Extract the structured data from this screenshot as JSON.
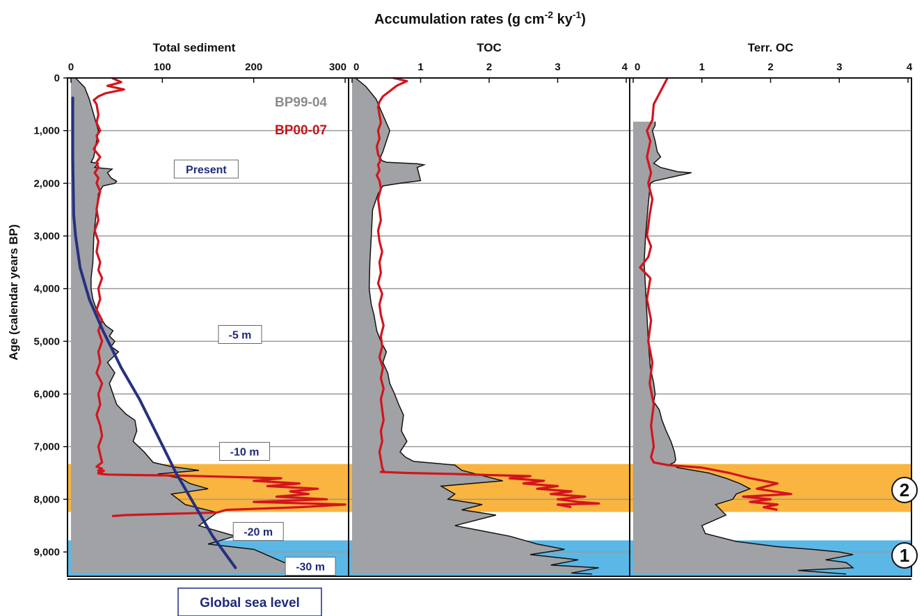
{
  "figure": {
    "title": "Accumulation rates (g cm",
    "title_sup1": "-2",
    "title_mid": " ky",
    "title_sup2": "-1",
    "title_end": ")",
    "ylabel": "Age (calendar years BP)",
    "legend": [
      "BP99-04",
      "BP00-07"
    ],
    "global_sea_level_label": "Global sea level",
    "sea_level_annotations": [
      {
        "text": "Present",
        "age": 1730,
        "x": 148
      },
      {
        "text": "-5 m",
        "age": 4870,
        "x": 185
      },
      {
        "text": "-10 m",
        "age": 7090,
        "x": 190
      },
      {
        "text": "-20 m",
        "age": 8610,
        "x": 205
      },
      {
        "text": "-30 m",
        "age": 9270,
        "x": 262
      }
    ],
    "bands": [
      {
        "label": "2",
        "from": 7330,
        "to": 8240,
        "color": "#f9b53f"
      },
      {
        "label": "1",
        "from": 8780,
        "to": 9450,
        "color": "#5bb7e6"
      }
    ]
  },
  "chart_data": [
    {
      "type": "area",
      "title": "Total sediment",
      "xlim": [
        0,
        300
      ],
      "xticks": [
        0,
        100,
        200,
        300
      ],
      "ylim": [
        0,
        9500
      ],
      "yticks": [
        0,
        1000,
        2000,
        3000,
        4000,
        5000,
        6000,
        7000,
        8000,
        9000
      ],
      "ytick_labels": [
        "0",
        "1,000",
        "2,000",
        "3,000",
        "4,000",
        "5,000",
        "6,000",
        "7,000",
        "8,000",
        "9,000"
      ],
      "series": [
        {
          "name": "BP99-04",
          "style": "gray-fill",
          "x": [
            5,
            15,
            20,
            25,
            30,
            28,
            25,
            22,
            30,
            28,
            26,
            45,
            40,
            44,
            50,
            48,
            35,
            30,
            28,
            25,
            24,
            22,
            22,
            24,
            26,
            28,
            30,
            34,
            38,
            46,
            42,
            48,
            44,
            52,
            40,
            48,
            42,
            46,
            50,
            60,
            70,
            72,
            68,
            80,
            90,
            110,
            140,
            95,
            120,
            130,
            150,
            110,
            125,
            160,
            140,
            180,
            150,
            200,
            220,
            260
          ],
          "y": [
            0,
            180,
            400,
            700,
            1000,
            1200,
            1500,
            1600,
            1620,
            1660,
            1700,
            1730,
            1800,
            1900,
            1960,
            2000,
            2050,
            2200,
            2500,
            3000,
            3500,
            3800,
            4000,
            4200,
            4300,
            4400,
            4500,
            4600,
            4700,
            4800,
            4900,
            5000,
            5100,
            5200,
            5400,
            5600,
            5800,
            6000,
            6200,
            6380,
            6500,
            6700,
            6900,
            7100,
            7300,
            7380,
            7450,
            7520,
            7600,
            7700,
            7800,
            7900,
            8100,
            8250,
            8500,
            8700,
            8850,
            8950,
            9100,
            9400
          ]
        },
        {
          "name": "BP00-07",
          "style": "red-line",
          "x": [
            45,
            55,
            40,
            58,
            38,
            30,
            25,
            28,
            30,
            28,
            32,
            28,
            30,
            25,
            32,
            28,
            30,
            26,
            30,
            28,
            32,
            30,
            28,
            30,
            26,
            30,
            28,
            32,
            30,
            34,
            30,
            32,
            28,
            34,
            30,
            34,
            30,
            32,
            28,
            34,
            30,
            32,
            28,
            32,
            34,
            30,
            32,
            34,
            28,
            34,
            30,
            36,
            32,
            34,
            30,
            34,
            30,
            34,
            40,
            70,
            120,
            230,
            200,
            250,
            215,
            270,
            240,
            260,
            225,
            280,
            200,
            300,
            250,
            170,
            160,
            60,
            45
          ],
          "y": [
            0,
            80,
            150,
            220,
            290,
            350,
            420,
            500,
            700,
            850,
            1000,
            1100,
            1200,
            1350,
            1500,
            1600,
            1700,
            1800,
            1900,
            2000,
            2150,
            2300,
            2500,
            2700,
            2900,
            3100,
            3300,
            3500,
            3650,
            3800,
            4000,
            4200,
            4400,
            4600,
            4800,
            5000,
            5200,
            5400,
            5600,
            5800,
            6000,
            6200,
            6400,
            6600,
            6800,
            7000,
            7150,
            7300,
            7380,
            7420,
            7450,
            7460,
            7470,
            7480,
            7490,
            7500,
            7510,
            7520,
            7530,
            7540,
            7550,
            7600,
            7650,
            7700,
            7750,
            7800,
            7850,
            7900,
            7950,
            8000,
            8050,
            8100,
            8150,
            8200,
            8250,
            8300,
            8320
          ]
        },
        {
          "name": "Global sea level",
          "style": "blue-line",
          "x": [
            2,
            2,
            3,
            5,
            10,
            20,
            35,
            55,
            75,
            95,
            115,
            135,
            155,
            180
          ],
          "y": [
            380,
            1500,
            2600,
            3000,
            3600,
            4200,
            4800,
            5500,
            6100,
            6800,
            7500,
            8100,
            8700,
            9300
          ]
        }
      ]
    },
    {
      "type": "area",
      "title": "TOC",
      "xlim": [
        0,
        4
      ],
      "xticks": [
        0,
        1,
        2,
        3,
        4
      ],
      "ylim": [
        0,
        9500
      ],
      "series": [
        {
          "name": "BP99-04",
          "style": "gray-fill",
          "x": [
            0.05,
            0.2,
            0.35,
            0.45,
            0.55,
            0.5,
            0.45,
            0.4,
            0.5,
            0.95,
            1.05,
            0.95,
            1.0,
            0.7,
            0.45,
            0.38,
            0.3,
            0.28,
            0.26,
            0.25,
            0.28,
            0.32,
            0.36,
            0.42,
            0.5,
            0.45,
            0.52,
            0.55,
            0.62,
            0.68,
            0.75,
            0.72,
            0.8,
            0.7,
            0.78,
            0.9,
            1.5,
            1.6,
            1.9,
            2.2,
            1.3,
            1.5,
            1.4,
            1.9,
            1.6,
            2.1,
            1.5,
            2.3,
            2.7,
            3.1,
            2.6,
            3.3,
            2.9,
            3.6,
            3.2,
            3.5
          ],
          "y": [
            0,
            160,
            400,
            700,
            1000,
            1200,
            1400,
            1550,
            1600,
            1630,
            1650,
            1700,
            1950,
            2000,
            2050,
            2200,
            2500,
            3000,
            3500,
            4000,
            4300,
            4500,
            4800,
            5000,
            5200,
            5400,
            5600,
            5800,
            6000,
            6200,
            6400,
            6700,
            6900,
            7100,
            7200,
            7280,
            7350,
            7450,
            7550,
            7650,
            7750,
            7900,
            8000,
            8100,
            8200,
            8300,
            8500,
            8700,
            8850,
            8950,
            9050,
            9150,
            9250,
            9300,
            9400,
            9420
          ]
        },
        {
          "name": "BP00-07",
          "style": "red-line",
          "x": [
            0.6,
            0.8,
            0.65,
            0.55,
            0.45,
            0.4,
            0.38,
            0.4,
            0.42,
            0.38,
            0.4,
            0.36,
            0.38,
            0.42,
            0.38,
            0.4,
            0.36,
            0.4,
            0.42,
            0.38,
            0.4,
            0.42,
            0.38,
            0.4,
            0.44,
            0.4,
            0.42,
            0.38,
            0.44,
            0.4,
            0.42,
            0.46,
            0.42,
            0.44,
            0.4,
            0.45,
            0.42,
            0.46,
            0.42,
            0.44,
            0.46,
            0.42,
            0.44,
            0.4,
            0.42,
            0.44,
            0.46,
            0.42,
            0.8,
            1.5,
            2.0,
            2.6,
            2.3,
            2.8,
            2.5,
            3.0,
            2.7,
            3.2,
            2.9,
            3.4,
            3.0,
            3.3,
            3.6,
            3.0,
            3.2
          ],
          "y": [
            0,
            60,
            150,
            250,
            350,
            450,
            550,
            700,
            850,
            1000,
            1150,
            1300,
            1450,
            1550,
            1650,
            1750,
            1850,
            1950,
            2100,
            2300,
            2500,
            2700,
            2900,
            3100,
            3300,
            3500,
            3700,
            3900,
            4100,
            4300,
            4500,
            4700,
            4900,
            5100,
            5300,
            5500,
            5700,
            5900,
            6100,
            6300,
            6500,
            6700,
            6900,
            7100,
            7250,
            7400,
            7460,
            7480,
            7500,
            7520,
            7540,
            7560,
            7600,
            7650,
            7700,
            7750,
            7800,
            7850,
            7900,
            7950,
            8000,
            8050,
            8080,
            8100,
            8150
          ]
        }
      ]
    },
    {
      "type": "area",
      "title": "Terr. OC",
      "xlim": [
        0,
        4
      ],
      "xticks": [
        0,
        1,
        2,
        3,
        4
      ],
      "ylim": [
        0,
        9500
      ],
      "series": [
        {
          "name": "BP99-04",
          "style": "gray-fill",
          "x": [
            0.32,
            0.32,
            0.28,
            0.32,
            0.35,
            0.4,
            0.3,
            0.4,
            0.65,
            0.85,
            0.5,
            0.3,
            0.25,
            0.22,
            0.18,
            0.16,
            0.18,
            0.2,
            0.22,
            0.25,
            0.3,
            0.32,
            0.3,
            0.38,
            0.42,
            0.48,
            0.55,
            0.6,
            0.62,
            0.6,
            0.55,
            0.65,
            1.1,
            1.35,
            1.55,
            1.7,
            1.5,
            1.45,
            1.2,
            1.35,
            1.0,
            1.05,
            1.5,
            2.1,
            2.6,
            3.0,
            3.2,
            2.8,
            3.1,
            3.2,
            2.4,
            3.1
          ],
          "y": [
            830,
            900,
            1000,
            1200,
            1400,
            1500,
            1620,
            1700,
            1780,
            1800,
            1900,
            1960,
            2000,
            2400,
            3000,
            3500,
            4000,
            4500,
            5000,
            5500,
            5800,
            6000,
            6150,
            6300,
            6500,
            6700,
            6900,
            7100,
            7250,
            7300,
            7330,
            7400,
            7500,
            7600,
            7700,
            7800,
            7900,
            8000,
            8100,
            8300,
            8500,
            8650,
            8800,
            8900,
            8950,
            9000,
            9050,
            9150,
            9200,
            9300,
            9350,
            9420
          ]
        },
        {
          "name": "BP00-07",
          "style": "red-line",
          "x": [
            0.5,
            0.3,
            0.28,
            0.2,
            0.25,
            0.2,
            0.26,
            0.22,
            0.28,
            0.24,
            0.2,
            0.26,
            0.22,
            0.1,
            0.25,
            0.2,
            0.26,
            0.22,
            0.28,
            0.24,
            0.3,
            0.26,
            0.3,
            0.26,
            0.28,
            0.3,
            0.5,
            1.0,
            1.4,
            1.7,
            2.1,
            1.8,
            2.3,
            1.6,
            2.0,
            1.7,
            2.1,
            1.9,
            2.1
          ],
          "y": [
            0,
            500,
            800,
            1000,
            1200,
            1500,
            1800,
            2000,
            2300,
            2600,
            3000,
            3200,
            3400,
            3600,
            3800,
            4200,
            4600,
            5000,
            5400,
            5800,
            6200,
            6600,
            7000,
            7200,
            7250,
            7300,
            7350,
            7400,
            7500,
            7600,
            7700,
            7800,
            7900,
            7950,
            8000,
            8050,
            8100,
            8150,
            8200
          ]
        }
      ]
    }
  ]
}
